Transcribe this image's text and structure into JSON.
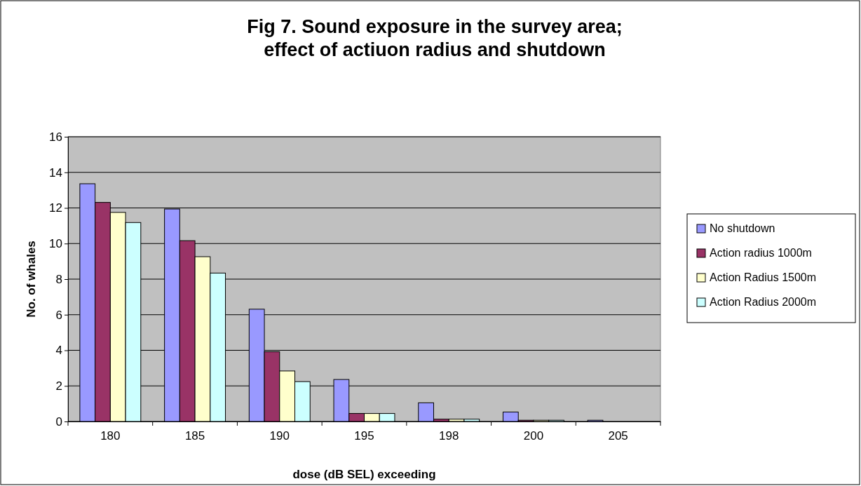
{
  "chart_data": {
    "type": "bar",
    "title": "Fig 7. Sound exposure in the survey area;\neffect of actiuon radius and shutdown",
    "xlabel": "dose (dB SEL) exceeding",
    "ylabel": "No. of whales",
    "categories": [
      "180",
      "185",
      "190",
      "195",
      "198",
      "200",
      "205"
    ],
    "series": [
      {
        "name": "No shutdown",
        "color": "#9999ff",
        "values": [
          13.36,
          11.94,
          6.31,
          2.36,
          1.05,
          0.53,
          0.07
        ]
      },
      {
        "name": "Action radius 1000m",
        "color": "#993366",
        "values": [
          12.31,
          10.16,
          3.92,
          0.45,
          0.13,
          0.07,
          0
        ]
      },
      {
        "name": "Action Radius 1500m",
        "color": "#ffffcc",
        "values": [
          11.75,
          9.26,
          2.84,
          0.45,
          0.13,
          0.07,
          0
        ]
      },
      {
        "name": "Action Radius 2000m",
        "color": "#ccffff",
        "values": [
          11.18,
          8.34,
          2.24,
          0.45,
          0.13,
          0.07,
          0
        ]
      }
    ],
    "ylim": [
      0,
      16
    ],
    "yticks": [
      0,
      2,
      4,
      6,
      8,
      10,
      12,
      14,
      16
    ],
    "grid": "y",
    "legend": "right"
  }
}
